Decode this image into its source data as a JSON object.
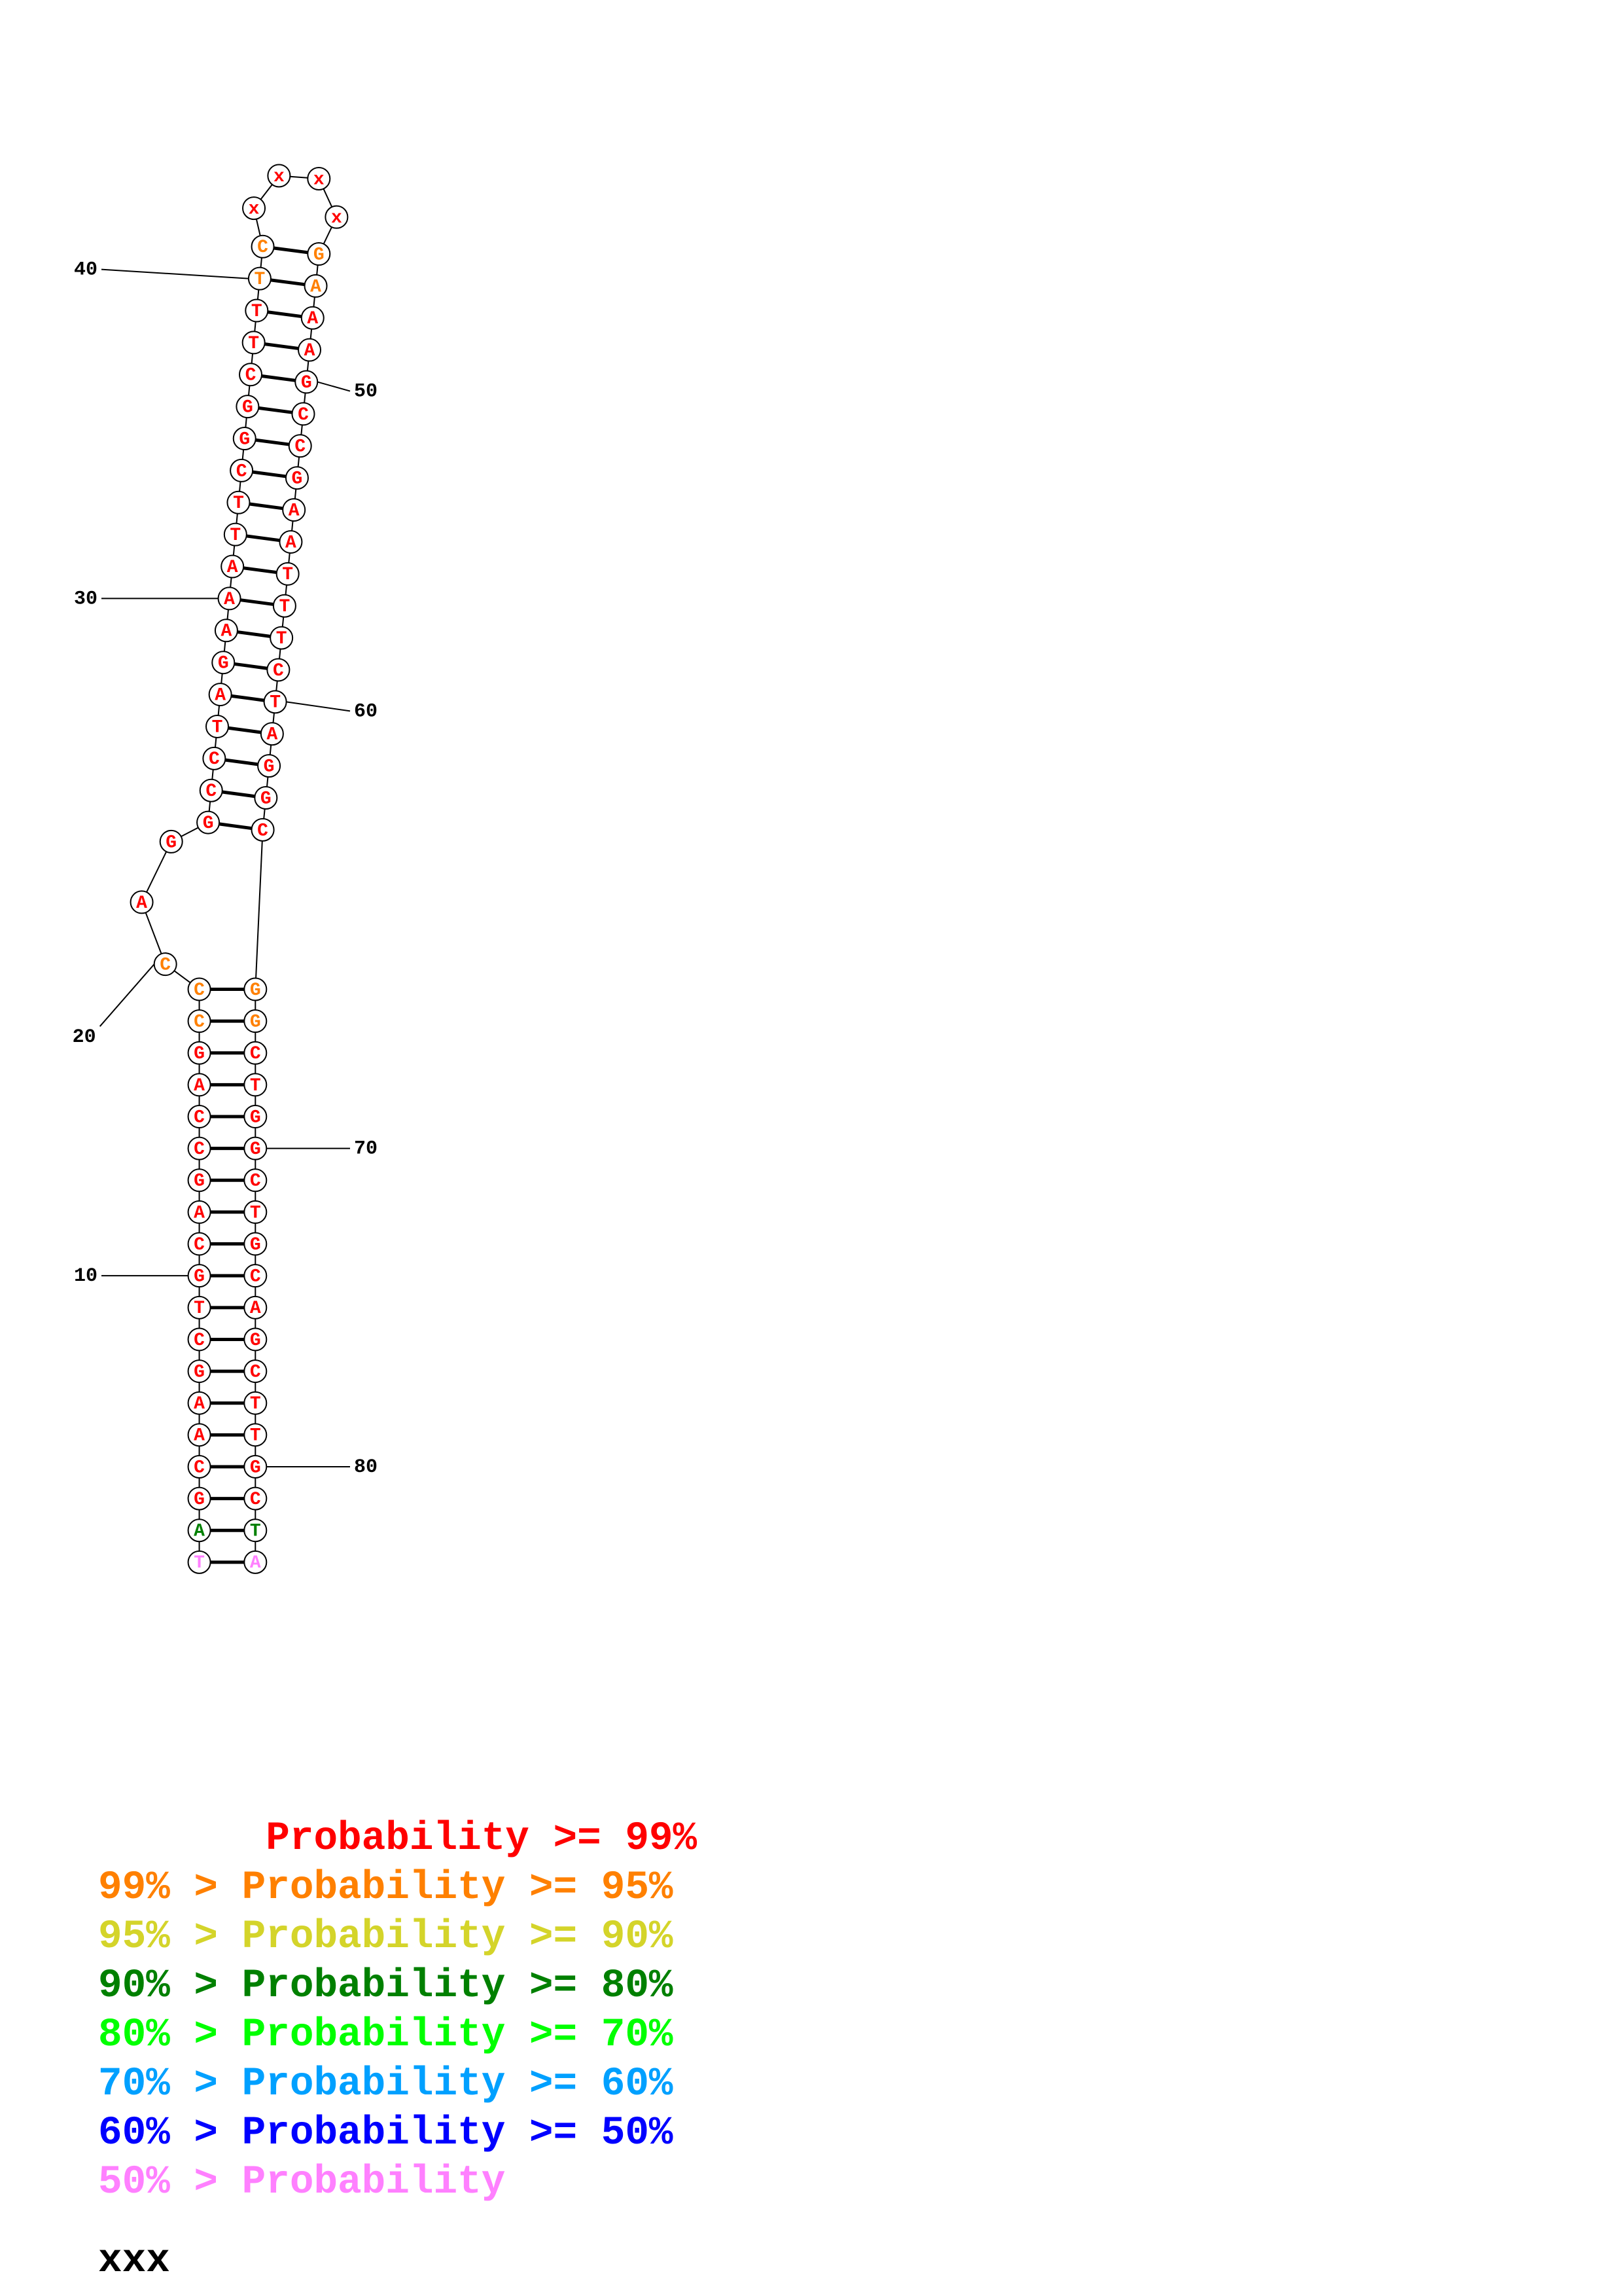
{
  "colors": {
    "p99": "#ff0000",
    "p95": "#ff8000",
    "p90": "#d4d42a",
    "p80": "#008000",
    "p70": "#00ff00",
    "p60": "#00a0ff",
    "p50": "#0000ff",
    "lt50": "#ff80ff",
    "unknown": "#000000"
  },
  "structure": {
    "nucleotides": [
      {
        "n": 1,
        "b": "T",
        "p": "lt50"
      },
      {
        "n": 2,
        "b": "A",
        "p": "p80"
      },
      {
        "n": 3,
        "b": "G",
        "p": "p99"
      },
      {
        "n": 4,
        "b": "C",
        "p": "p99"
      },
      {
        "n": 5,
        "b": "A",
        "p": "p99"
      },
      {
        "n": 6,
        "b": "A",
        "p": "p99"
      },
      {
        "n": 7,
        "b": "G",
        "p": "p99"
      },
      {
        "n": 8,
        "b": "C",
        "p": "p99"
      },
      {
        "n": 9,
        "b": "T",
        "p": "p99"
      },
      {
        "n": 10,
        "b": "G",
        "p": "p99"
      },
      {
        "n": 11,
        "b": "C",
        "p": "p99"
      },
      {
        "n": 12,
        "b": "A",
        "p": "p99"
      },
      {
        "n": 13,
        "b": "G",
        "p": "p99"
      },
      {
        "n": 14,
        "b": "C",
        "p": "p99"
      },
      {
        "n": 15,
        "b": "C",
        "p": "p99"
      },
      {
        "n": 16,
        "b": "A",
        "p": "p99"
      },
      {
        "n": 17,
        "b": "G",
        "p": "p99"
      },
      {
        "n": 18,
        "b": "C",
        "p": "p95"
      },
      {
        "n": 19,
        "b": "C",
        "p": "p95"
      },
      {
        "n": 20,
        "b": "C",
        "p": "p95"
      },
      {
        "n": 21,
        "b": "A",
        "p": "p99"
      },
      {
        "n": 22,
        "b": "G",
        "p": "p99"
      },
      {
        "n": 23,
        "b": "G",
        "p": "p99"
      },
      {
        "n": 24,
        "b": "C",
        "p": "p99"
      },
      {
        "n": 25,
        "b": "C",
        "p": "p99"
      },
      {
        "n": 26,
        "b": "T",
        "p": "p99"
      },
      {
        "n": 27,
        "b": "A",
        "p": "p99"
      },
      {
        "n": 28,
        "b": "G",
        "p": "p99"
      },
      {
        "n": 29,
        "b": "A",
        "p": "p99"
      },
      {
        "n": 30,
        "b": "A",
        "p": "p99"
      },
      {
        "n": 31,
        "b": "A",
        "p": "p99"
      },
      {
        "n": 32,
        "b": "T",
        "p": "p99"
      },
      {
        "n": 33,
        "b": "T",
        "p": "p99"
      },
      {
        "n": 34,
        "b": "C",
        "p": "p99"
      },
      {
        "n": 35,
        "b": "G",
        "p": "p99"
      },
      {
        "n": 36,
        "b": "G",
        "p": "p99"
      },
      {
        "n": 37,
        "b": "C",
        "p": "p99"
      },
      {
        "n": 38,
        "b": "T",
        "p": "p99"
      },
      {
        "n": 39,
        "b": "T",
        "p": "p99"
      },
      {
        "n": 40,
        "b": "T",
        "p": "p95"
      },
      {
        "n": 41,
        "b": "C",
        "p": "p95"
      },
      {
        "n": 42,
        "b": "x",
        "p": "p99"
      },
      {
        "n": 43,
        "b": "x",
        "p": "p99"
      },
      {
        "n": 44,
        "b": "x",
        "p": "p99"
      },
      {
        "n": 45,
        "b": "x",
        "p": "p99"
      },
      {
        "n": 46,
        "b": "G",
        "p": "p95"
      },
      {
        "n": 47,
        "b": "A",
        "p": "p95"
      },
      {
        "n": 48,
        "b": "A",
        "p": "p99"
      },
      {
        "n": 49,
        "b": "A",
        "p": "p99"
      },
      {
        "n": 50,
        "b": "G",
        "p": "p99"
      },
      {
        "n": 51,
        "b": "C",
        "p": "p99"
      },
      {
        "n": 52,
        "b": "C",
        "p": "p99"
      },
      {
        "n": 53,
        "b": "G",
        "p": "p99"
      },
      {
        "n": 54,
        "b": "A",
        "p": "p99"
      },
      {
        "n": 55,
        "b": "A",
        "p": "p99"
      },
      {
        "n": 56,
        "b": "T",
        "p": "p99"
      },
      {
        "n": 57,
        "b": "T",
        "p": "p99"
      },
      {
        "n": 58,
        "b": "T",
        "p": "p99"
      },
      {
        "n": 59,
        "b": "C",
        "p": "p99"
      },
      {
        "n": 60,
        "b": "T",
        "p": "p99"
      },
      {
        "n": 61,
        "b": "A",
        "p": "p99"
      },
      {
        "n": 62,
        "b": "G",
        "p": "p99"
      },
      {
        "n": 63,
        "b": "G",
        "p": "p99"
      },
      {
        "n": 64,
        "b": "C",
        "p": "p99"
      },
      {
        "n": 65,
        "b": "G",
        "p": "p95"
      },
      {
        "n": 66,
        "b": "G",
        "p": "p95"
      },
      {
        "n": 67,
        "b": "C",
        "p": "p99"
      },
      {
        "n": 68,
        "b": "T",
        "p": "p99"
      },
      {
        "n": 69,
        "b": "G",
        "p": "p99"
      },
      {
        "n": 70,
        "b": "G",
        "p": "p99"
      },
      {
        "n": 71,
        "b": "C",
        "p": "p99"
      },
      {
        "n": 72,
        "b": "T",
        "p": "p99"
      },
      {
        "n": 73,
        "b": "G",
        "p": "p99"
      },
      {
        "n": 74,
        "b": "C",
        "p": "p99"
      },
      {
        "n": 75,
        "b": "A",
        "p": "p99"
      },
      {
        "n": 76,
        "b": "G",
        "p": "p99"
      },
      {
        "n": 77,
        "b": "C",
        "p": "p99"
      },
      {
        "n": 78,
        "b": "T",
        "p": "p99"
      },
      {
        "n": 79,
        "b": "T",
        "p": "p99"
      },
      {
        "n": 80,
        "b": "G",
        "p": "p99"
      },
      {
        "n": 81,
        "b": "C",
        "p": "p99"
      },
      {
        "n": 82,
        "b": "T",
        "p": "p80"
      },
      {
        "n": 83,
        "b": "A",
        "p": "lt50"
      }
    ],
    "pairs": [
      [
        1,
        83
      ],
      [
        2,
        82
      ],
      [
        3,
        81
      ],
      [
        4,
        80
      ],
      [
        5,
        79
      ],
      [
        6,
        78
      ],
      [
        7,
        77
      ],
      [
        8,
        76
      ],
      [
        9,
        75
      ],
      [
        10,
        74
      ],
      [
        11,
        73
      ],
      [
        12,
        72
      ],
      [
        13,
        71
      ],
      [
        14,
        70
      ],
      [
        15,
        69
      ],
      [
        16,
        68
      ],
      [
        17,
        67
      ],
      [
        18,
        66
      ],
      [
        19,
        65
      ],
      [
        23,
        64
      ],
      [
        24,
        63
      ],
      [
        25,
        62
      ],
      [
        26,
        61
      ],
      [
        27,
        60
      ],
      [
        28,
        59
      ],
      [
        29,
        58
      ],
      [
        30,
        57
      ],
      [
        31,
        56
      ],
      [
        32,
        55
      ],
      [
        33,
        54
      ],
      [
        34,
        53
      ],
      [
        35,
        52
      ],
      [
        36,
        51
      ],
      [
        37,
        50
      ],
      [
        38,
        49
      ],
      [
        39,
        48
      ],
      [
        40,
        47
      ],
      [
        41,
        46
      ]
    ],
    "position_labels": [
      {
        "n": 10,
        "text": "10",
        "side": "left"
      },
      {
        "n": 20,
        "text": "20",
        "side": "left"
      },
      {
        "n": 30,
        "text": "30",
        "side": "left"
      },
      {
        "n": 40,
        "text": "40",
        "side": "left"
      },
      {
        "n": 50,
        "text": "50",
        "side": "right"
      },
      {
        "n": 60,
        "text": "60",
        "side": "right"
      },
      {
        "n": 70,
        "text": "70",
        "side": "right"
      },
      {
        "n": 80,
        "text": "80",
        "side": "right"
      }
    ]
  },
  "legend": {
    "lines": [
      {
        "text": "       Probability >= 99%",
        "color": "p99"
      },
      {
        "text": "99% > Probability >= 95%",
        "color": "p95"
      },
      {
        "text": "95% > Probability >= 90%",
        "color": "p90"
      },
      {
        "text": "90% > Probability >= 80%",
        "color": "p80"
      },
      {
        "text": "80% > Probability >= 70%",
        "color": "p70"
      },
      {
        "text": "70% > Probability >= 60%",
        "color": "p60"
      },
      {
        "text": "60% > Probability >= 50%",
        "color": "p50"
      },
      {
        "text": "50% > Probability",
        "color": "lt50"
      }
    ],
    "footer": "xxx"
  }
}
